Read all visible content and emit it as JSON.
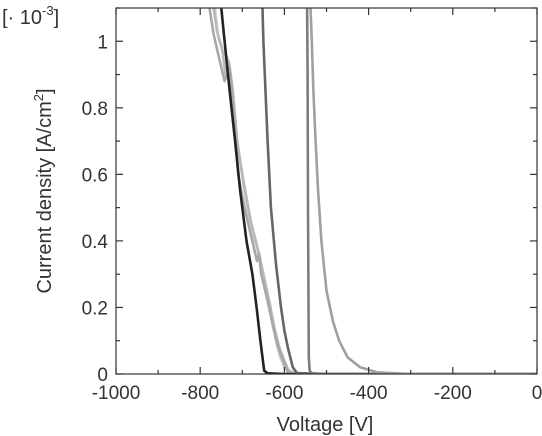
{
  "chart_data": {
    "type": "line",
    "title": "",
    "xlabel": "Voltage [V]",
    "ylabel": "Current density [A/cm",
    "ylabel_sup": "2",
    "ylabel_close": "]",
    "y_multiplier_prefix": "[· 10",
    "y_multiplier_exp": "-3",
    "y_multiplier_suffix": "]",
    "xlim": [
      -1000,
      0
    ],
    "ylim": [
      0,
      1.1
    ],
    "grid": false,
    "legend": "none",
    "x_ticks": [
      -1000,
      -800,
      -600,
      -400,
      -200,
      0
    ],
    "x_tick_labels": [
      "-1000",
      "-800",
      "-600",
      "-400",
      "-200",
      "0"
    ],
    "y_ticks": [
      0,
      0.2,
      0.4,
      0.6,
      0.8,
      1
    ],
    "y_tick_labels": [
      "0",
      "0.2",
      "0.4",
      "0.6",
      "0.8",
      "1"
    ],
    "series": [
      {
        "color": "#d0d0d0",
        "points": [
          [
            -560,
            0
          ],
          [
            -580,
            0.005
          ],
          [
            -600,
            0.02
          ],
          [
            -610,
            0.05
          ],
          [
            -620,
            0.1
          ],
          [
            -630,
            0.16
          ],
          [
            -640,
            0.23
          ],
          [
            -655,
            0.32
          ],
          [
            -665,
            0.38
          ],
          [
            -680,
            0.44
          ],
          [
            -695,
            0.55
          ],
          [
            -710,
            0.68
          ],
          [
            -722,
            0.82
          ],
          [
            -735,
            0.95
          ],
          [
            -747,
            0.97
          ],
          [
            -757,
            1.01
          ],
          [
            -765,
            1.1
          ]
        ]
      },
      {
        "color": "#b8b8b8",
        "points": [
          [
            -575,
            0
          ],
          [
            -590,
            0.01
          ],
          [
            -600,
            0.04
          ],
          [
            -612,
            0.08
          ],
          [
            -624,
            0.14
          ],
          [
            -636,
            0.22
          ],
          [
            -650,
            0.3
          ],
          [
            -660,
            0.36
          ],
          [
            -668,
            0.4
          ],
          [
            -680,
            0.46
          ],
          [
            -700,
            0.6
          ],
          [
            -712,
            0.7
          ],
          [
            -723,
            0.86
          ],
          [
            -732,
            0.94
          ],
          [
            -740,
            0.9
          ],
          [
            -748,
            0.98
          ],
          [
            -760,
            1.03
          ],
          [
            -768,
            1.1
          ]
        ]
      },
      {
        "color": "#a8a8a8",
        "points": [
          [
            -590,
            0
          ],
          [
            -600,
            0.03
          ],
          [
            -615,
            0.08
          ],
          [
            -628,
            0.15
          ],
          [
            -640,
            0.22
          ],
          [
            -655,
            0.3
          ],
          [
            -660,
            0.36
          ],
          [
            -665,
            0.34
          ],
          [
            -680,
            0.42
          ],
          [
            -695,
            0.5
          ],
          [
            -710,
            0.6
          ],
          [
            -720,
            0.78
          ],
          [
            -730,
            0.92
          ],
          [
            -742,
            0.88
          ],
          [
            -755,
            0.95
          ],
          [
            -768,
            1.02
          ],
          [
            -778,
            1.1
          ]
        ]
      },
      {
        "color": "#222222",
        "points": [
          [
            0,
            0
          ],
          [
            -500,
            0
          ],
          [
            -600,
            0
          ],
          [
            -640,
            0.002
          ],
          [
            -648,
            0.01
          ],
          [
            -652,
            0.05
          ],
          [
            -657,
            0.1
          ],
          [
            -666,
            0.2
          ],
          [
            -676,
            0.3
          ],
          [
            -690,
            0.4
          ],
          [
            -705,
            0.55
          ],
          [
            -717,
            0.7
          ],
          [
            -730,
            0.85
          ],
          [
            -742,
            1.0
          ],
          [
            -750,
            1.1
          ]
        ]
      },
      {
        "color": "#666666",
        "points": [
          [
            0,
            0
          ],
          [
            -500,
            0
          ],
          [
            -570,
            0.003
          ],
          [
            -580,
            0.02
          ],
          [
            -592,
            0.08
          ],
          [
            -600,
            0.13
          ],
          [
            -608,
            0.2
          ],
          [
            -620,
            0.33
          ],
          [
            -632,
            0.5
          ],
          [
            -640,
            0.7
          ],
          [
            -645,
            0.85
          ],
          [
            -650,
            1.0
          ],
          [
            -652,
            1.1
          ]
        ]
      },
      {
        "color": "#7c7c7c",
        "points": [
          [
            0,
            0
          ],
          [
            -500,
            0
          ],
          [
            -535,
            0.002
          ],
          [
            -540,
            0.01
          ],
          [
            -542,
            0.05
          ],
          [
            -544,
            0.5
          ],
          [
            -545,
            0.9
          ],
          [
            -546,
            1.1
          ]
        ]
      },
      {
        "color": "#a0a0a0",
        "points": [
          [
            0,
            0
          ],
          [
            -300,
            0
          ],
          [
            -380,
            0.005
          ],
          [
            -420,
            0.02
          ],
          [
            -450,
            0.05
          ],
          [
            -470,
            0.1
          ],
          [
            -485,
            0.16
          ],
          [
            -500,
            0.25
          ],
          [
            -512,
            0.4
          ],
          [
            -520,
            0.55
          ],
          [
            -526,
            0.7
          ],
          [
            -531,
            0.85
          ],
          [
            -535,
            1.0
          ],
          [
            -538,
            1.1
          ]
        ]
      }
    ]
  }
}
